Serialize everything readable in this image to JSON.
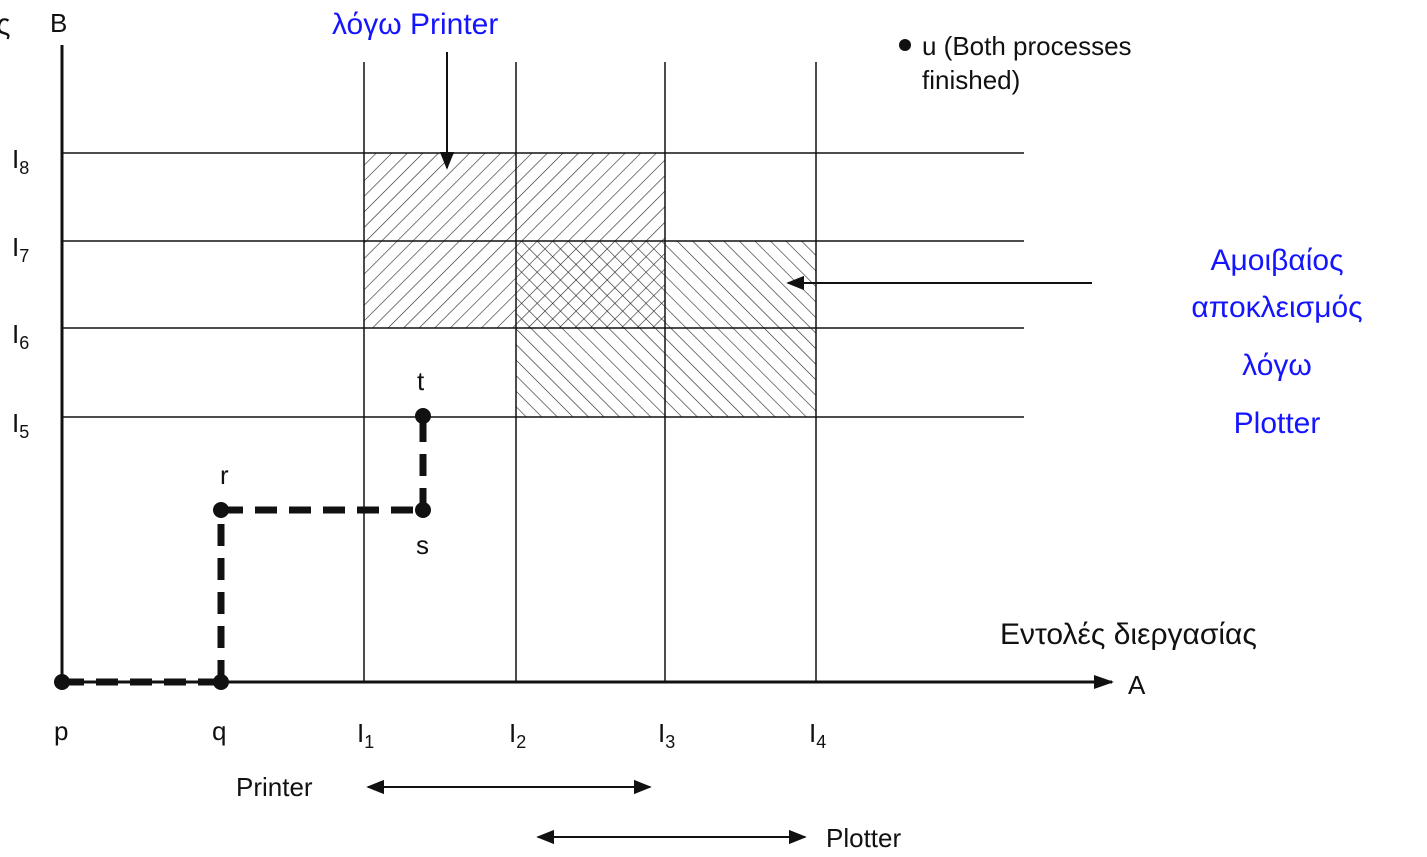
{
  "top_left_cut_text": "ς",
  "axes": {
    "y_label": "B",
    "x_label": "A",
    "x_caption": "Εντολές διεργασίας"
  },
  "x_ticks": [
    {
      "letter": "I",
      "sub": "1"
    },
    {
      "letter": "I",
      "sub": "2"
    },
    {
      "letter": "I",
      "sub": "3"
    },
    {
      "letter": "I",
      "sub": "4"
    }
  ],
  "y_ticks": [
    {
      "letter": "I",
      "sub": "8"
    },
    {
      "letter": "I",
      "sub": "7"
    },
    {
      "letter": "I",
      "sub": "6"
    },
    {
      "letter": "I",
      "sub": "5"
    }
  ],
  "points": {
    "p": "p",
    "q": "q",
    "r": "r",
    "s": "s",
    "t": "t"
  },
  "legend": {
    "bullet": "•",
    "line1": "u (Both processes",
    "line2": "finished)"
  },
  "resource_ranges": {
    "printer": "Printer",
    "plotter": "Plotter"
  },
  "annotations": {
    "printer_top": "λόγω Printer",
    "plotter_lines": [
      "Αμοιβαίος",
      "αποκλεισμός",
      "λόγω",
      "Plotter"
    ]
  },
  "colors": {
    "annotation_blue": "#1414ff",
    "ink": "#111111"
  }
}
